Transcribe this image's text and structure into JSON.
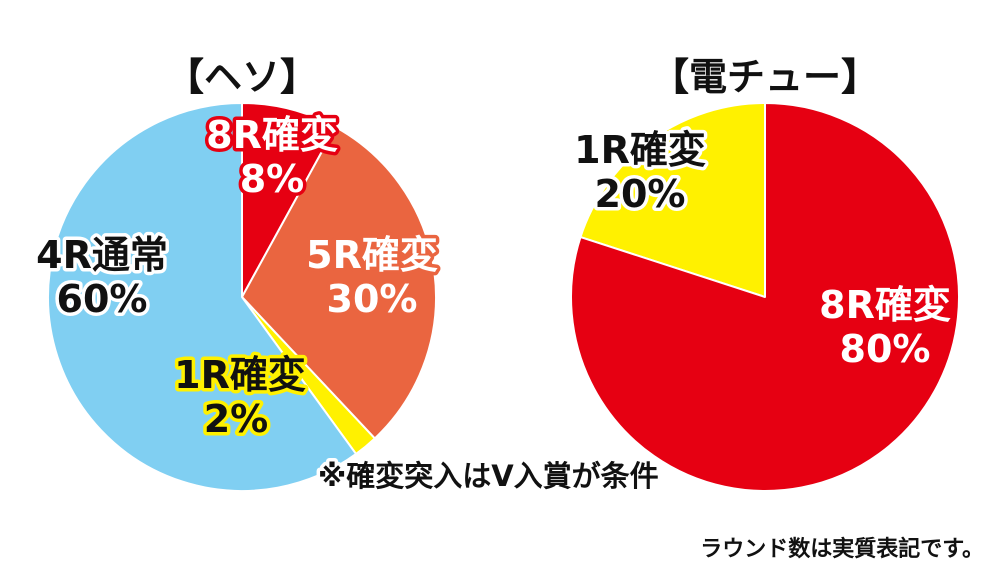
{
  "chart_data": [
    {
      "type": "pie",
      "title": "【ヘソ】",
      "start_angle_deg": 0,
      "slices": [
        {
          "name": "8R確変",
          "value": 8,
          "label": "8%",
          "color": "#e60012",
          "text_fill": "#ffffff",
          "text_stroke": "#e60012"
        },
        {
          "name": "5R確変",
          "value": 30,
          "label": "30%",
          "color": "#ea6540",
          "text_fill": "#ffffff",
          "text_stroke": "#ea6540"
        },
        {
          "name": "1R確変",
          "value": 2,
          "label": "2%",
          "color": "#fff100",
          "text_fill": "#111111",
          "text_stroke": "#fff100"
        },
        {
          "name": "4R通常",
          "value": 60,
          "label": "60%",
          "color": "#80cff2",
          "text_fill": "#111111",
          "text_stroke": "#ffffff"
        }
      ]
    },
    {
      "type": "pie",
      "title": "【電チュー】",
      "start_angle_deg": -72,
      "slices": [
        {
          "name": "1R確変",
          "value": 20,
          "label": "20%",
          "color": "#fff100",
          "text_fill": "#111111",
          "text_stroke": "#ffffff"
        },
        {
          "name": "8R確変",
          "value": 80,
          "label": "80%",
          "color": "#e60012",
          "text_fill": "#ffffff",
          "text_stroke": "#e60012"
        }
      ]
    }
  ],
  "notes": {
    "condition": "※確変突入はV入賞が条件",
    "rounds": "ラウンド数は実質表記です。"
  }
}
